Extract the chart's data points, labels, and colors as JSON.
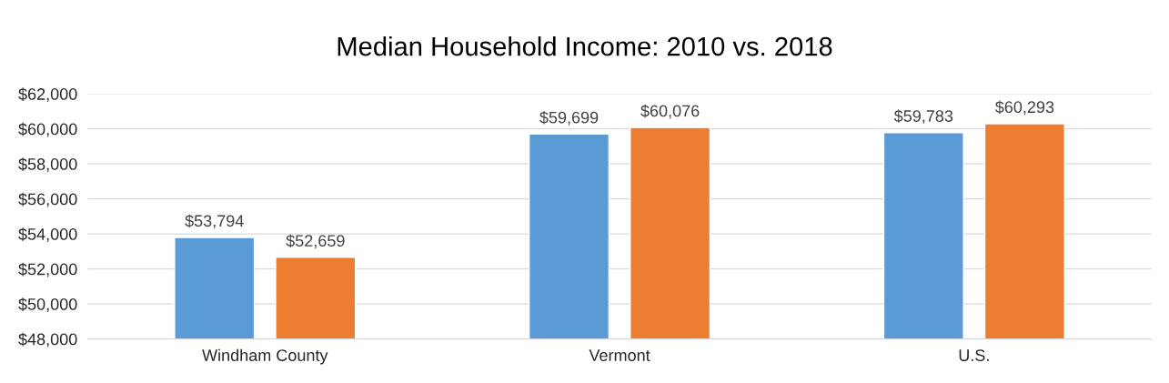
{
  "chart_data": {
    "type": "bar",
    "title": "Median Household Income: 2010 vs. 2018",
    "categories": [
      "Windham County",
      "Vermont",
      "U.S."
    ],
    "series": [
      {
        "color": "#5b9bd5",
        "values": [
          53794,
          59699,
          59783
        ],
        "value_labels": [
          "$53,794",
          "$59,699",
          "$59,783"
        ]
      },
      {
        "color": "#ed7d31",
        "values": [
          52659,
          60076,
          60293
        ],
        "value_labels": [
          "$52,659",
          "$60,076",
          "$60,293"
        ]
      }
    ],
    "ylim": [
      48000,
      62000
    ],
    "yticks": [
      {
        "value": 48000,
        "label": "$48,000"
      },
      {
        "value": 50000,
        "label": "$50,000"
      },
      {
        "value": 52000,
        "label": "$52,000"
      },
      {
        "value": 54000,
        "label": "$54,000"
      },
      {
        "value": 56000,
        "label": "$56,000"
      },
      {
        "value": 58000,
        "label": "$58,000"
      },
      {
        "value": 60000,
        "label": "$60,000"
      },
      {
        "value": 62000,
        "label": "$62,000"
      }
    ],
    "grid": "y",
    "legend": false
  }
}
